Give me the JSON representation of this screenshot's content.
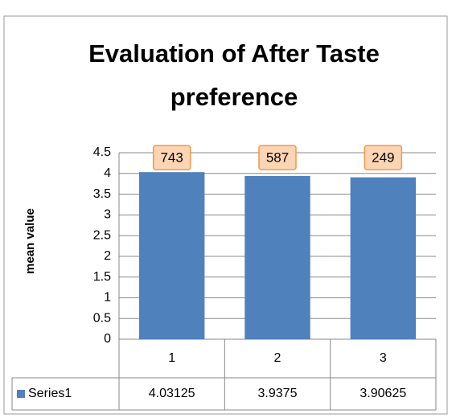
{
  "chart_data": {
    "type": "bar",
    "title": "Evaluation of After Taste preference",
    "y_label": "mean value",
    "categories": [
      "1",
      "2",
      "3"
    ],
    "series": [
      {
        "name": "Series1",
        "color": "#4f81bd",
        "values": [
          4.03125,
          3.9375,
          3.90625
        ]
      }
    ],
    "annotations": [
      "743",
      "587",
      "249"
    ],
    "ylim": [
      0,
      4.5
    ],
    "yticks": [
      0,
      0.5,
      1,
      1.5,
      2,
      2.5,
      3,
      3.5,
      4,
      4.5
    ],
    "grid": true,
    "data_table": true
  }
}
